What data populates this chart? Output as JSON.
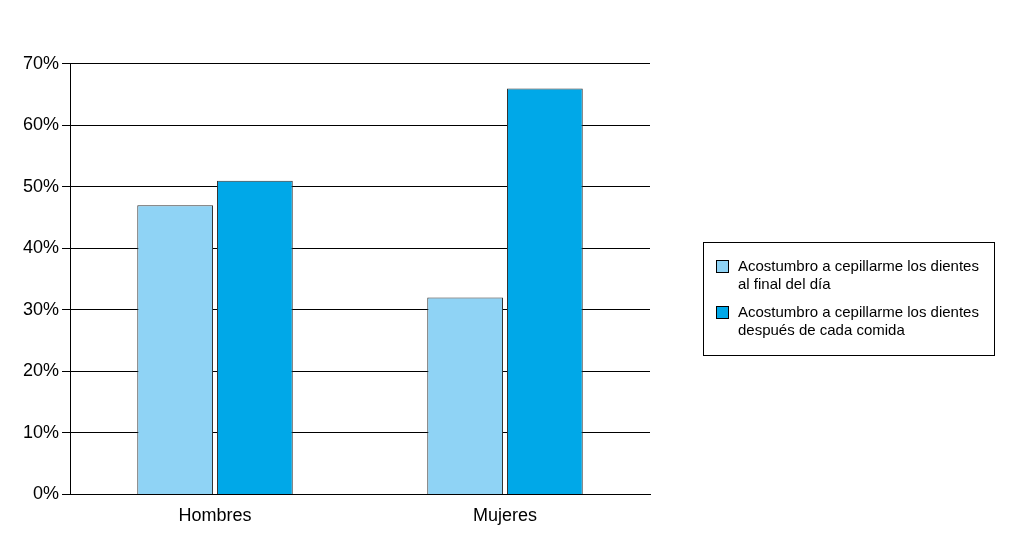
{
  "chart_data": {
    "type": "bar",
    "categories": [
      "Hombres",
      "Mujeres"
    ],
    "series": [
      {
        "name": "Acostumbro a cepillarme los dientes al final del día",
        "color": "#8fd3f5",
        "values": [
          47,
          32
        ]
      },
      {
        "name": "Acostumbro a cepillarme los dientes después de cada comida",
        "color": "#00a8e8",
        "values": [
          51,
          66
        ]
      }
    ],
    "ylim": [
      0,
      70
    ],
    "yticks": [
      {
        "value": 0,
        "label": "0%"
      },
      {
        "value": 10,
        "label": "10%"
      },
      {
        "value": 20,
        "label": "20%"
      },
      {
        "value": 30,
        "label": "30%"
      },
      {
        "value": 40,
        "label": "40%"
      },
      {
        "value": 50,
        "label": "50%"
      },
      {
        "value": 60,
        "label": "60%"
      },
      {
        "value": 70,
        "label": "70%"
      }
    ],
    "grid": "y",
    "legend": "right"
  }
}
